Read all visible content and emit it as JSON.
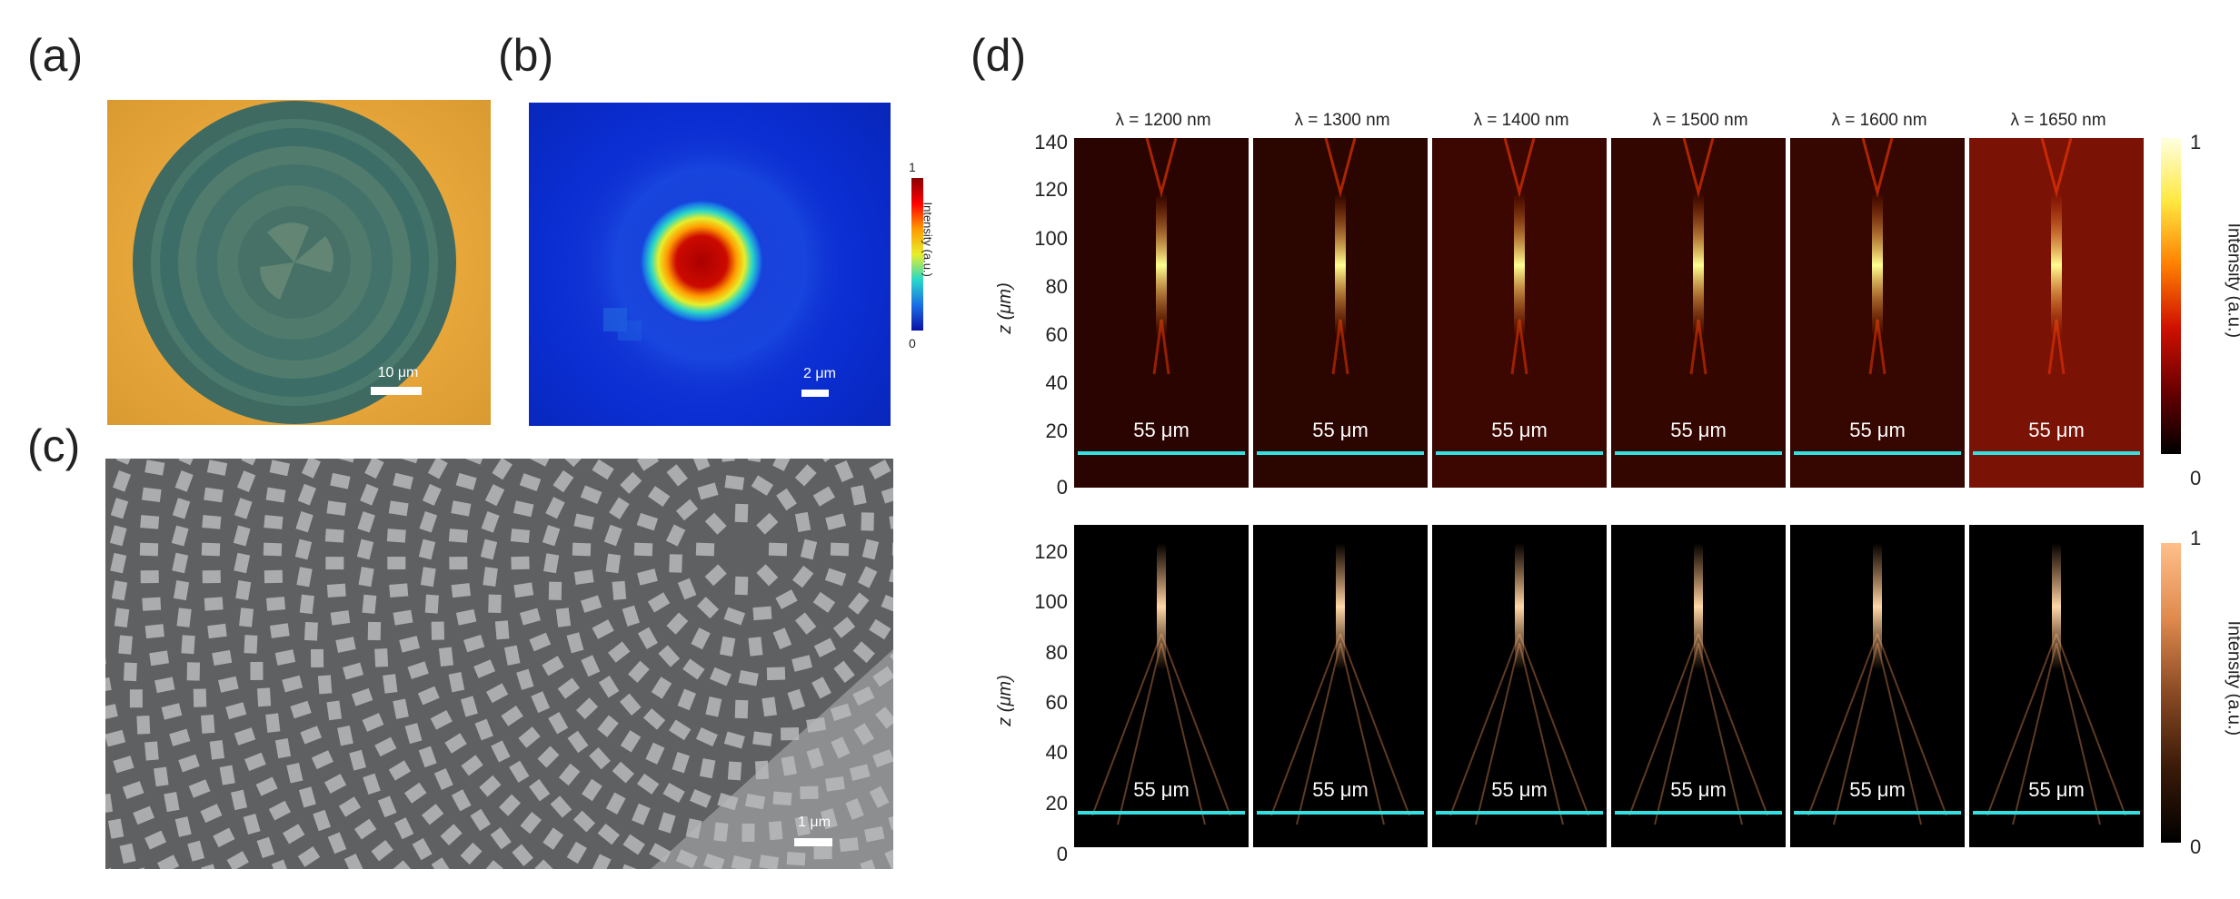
{
  "panels": {
    "a": {
      "label": "(a)",
      "scalebar": "10 μm"
    },
    "b": {
      "label": "(b)",
      "scalebar": "2 μm",
      "colorbar_label": "Intensity (a.u.)",
      "colorbar_max": "1",
      "colorbar_min": "0"
    },
    "c": {
      "label": "(c)",
      "scalebar": "1 μm"
    },
    "d": {
      "label": "(d)",
      "columns": [
        "λ = 1200 nm",
        "λ = 1300 nm",
        "λ = 1400 nm",
        "λ = 1500 nm",
        "λ = 1600 nm",
        "λ = 1650 nm"
      ],
      "arrow_label": "55 μm",
      "top": {
        "yticks": [
          "140",
          "120",
          "100",
          "80",
          "60",
          "40",
          "20",
          "0"
        ],
        "ylabel": "z (μm)",
        "colorbar_label": "Intensity (a.u.)",
        "colorbar_max": "1",
        "colorbar_min": "0"
      },
      "bottom": {
        "yticks": [
          "120",
          "100",
          "80",
          "60",
          "40",
          "20",
          "0"
        ],
        "ylabel": "z (μm)",
        "colorbar_label": "Intensity (a.u.)",
        "colorbar_max": "1",
        "colorbar_min": "0"
      }
    }
  },
  "colors": {
    "accent_arrow": "#33e0e0",
    "optical_bg": "#e6a53a",
    "sem_bg": "#5f6061",
    "beam_bg": "#0b2ed3"
  }
}
